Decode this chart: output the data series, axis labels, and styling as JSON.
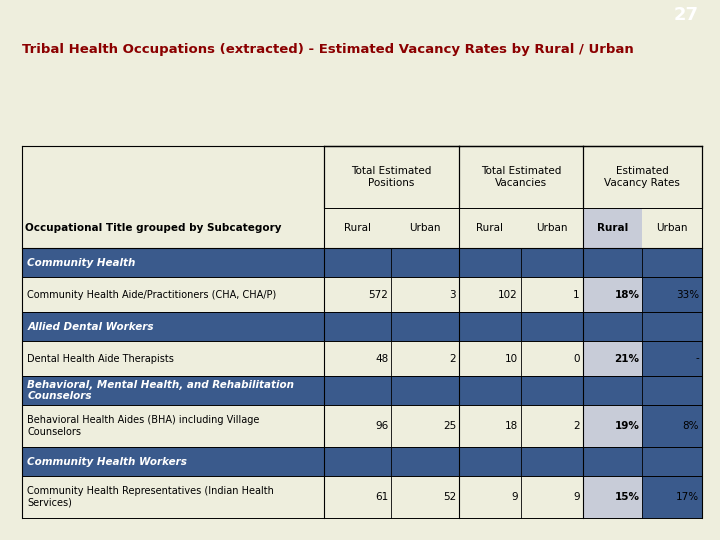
{
  "title": "Tribal Health Occupations (extracted) - Estimated Vacancy Rates by Rural / Urban",
  "page_number": "27",
  "bg_color": "#eeeedd",
  "header_bar_color": "#7a9490",
  "blue_color": "#3a5a8c",
  "light_gray_color": "#c8ccd8",
  "cream_color": "#eeeedd",
  "col_headers": [
    "Total Estimated\nPositions",
    "Total Estimated\nVacancies",
    "Estimated\nVacancy Rates"
  ],
  "sub_headers": [
    "Rural",
    "Urban",
    "Rural",
    "Urban",
    "Rural",
    "Urban"
  ],
  "row_label_header": "Occupational Title grouped by Subcategory",
  "rows": [
    {
      "label": "Community Health",
      "is_category": true,
      "values": [
        "",
        "",
        "",
        "",
        "",
        ""
      ]
    },
    {
      "label": "Community Health Aide/Practitioners (CHA, CHA/P)",
      "is_category": false,
      "values": [
        "572",
        "3",
        "102",
        "1",
        "18%",
        "33%"
      ]
    },
    {
      "label": "Allied Dental Workers",
      "is_category": true,
      "values": [
        "",
        "",
        "",
        "",
        "",
        ""
      ]
    },
    {
      "label": "Dental Health Aide Therapists",
      "is_category": false,
      "values": [
        "48",
        "2",
        "10",
        "0",
        "21%",
        "-"
      ]
    },
    {
      "label": "Behavioral, Mental Health, and Rehabilitation\nCounselors",
      "is_category": true,
      "values": [
        "",
        "",
        "",
        "",
        "",
        ""
      ]
    },
    {
      "label": "Behavioral Health Aides (BHA) including Village\nCounselors",
      "is_category": false,
      "values": [
        "96",
        "25",
        "18",
        "2",
        "19%",
        "8%"
      ]
    },
    {
      "label": "Community Health Workers",
      "is_category": true,
      "values": [
        "",
        "",
        "",
        "",
        "",
        ""
      ]
    },
    {
      "label": "Community Health Representatives (Indian Health\nServices)",
      "is_category": false,
      "values": [
        "61",
        "52",
        "9",
        "9",
        "15%",
        "17%"
      ]
    }
  ]
}
